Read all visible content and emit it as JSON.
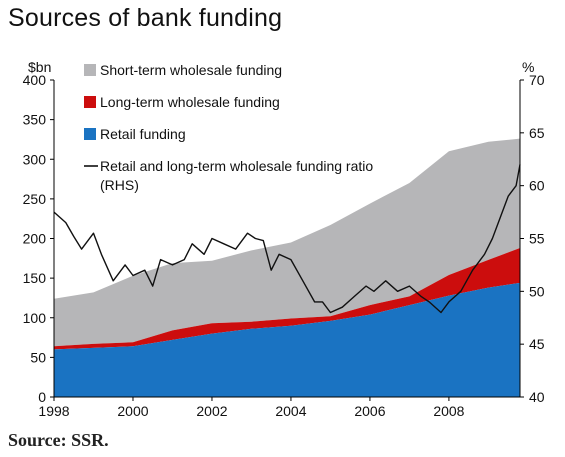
{
  "title": "Sources of bank funding",
  "source": "Source: SSR.",
  "chart_data": {
    "type": "area",
    "x_range": [
      1998,
      2009.8
    ],
    "x_ticks": [
      "1998",
      "2000",
      "2002",
      "2004",
      "2006",
      "2008"
    ],
    "left_axis": {
      "unit": "$bn",
      "range": [
        0,
        400
      ],
      "ticks": [
        "0",
        "50",
        "100",
        "150",
        "200",
        "250",
        "300",
        "350",
        "400"
      ]
    },
    "right_axis": {
      "unit": "%",
      "range": [
        40,
        70
      ],
      "ticks": [
        "40",
        "45",
        "50",
        "55",
        "60",
        "65",
        "70"
      ]
    },
    "legend_position": "top-left",
    "colors": {
      "short_term": "#b6b6b8",
      "long_term": "#cc0d0d",
      "retail": "#1a73c2",
      "ratio": "#111111"
    },
    "stacked_series": [
      {
        "name": "Retail funding",
        "color_key": "retail",
        "x": [
          1998,
          1999,
          2000,
          2001,
          2002,
          2003,
          2004,
          2005,
          2006,
          2007,
          2008,
          2009,
          2009.8
        ],
        "values": [
          60,
          62,
          64,
          72,
          80,
          86,
          90,
          96,
          104,
          116,
          128,
          138,
          144
        ]
      },
      {
        "name": "Long-term wholesale funding",
        "color_key": "long_term",
        "x": [
          1998,
          1999,
          2000,
          2001,
          2002,
          2003,
          2004,
          2005,
          2006,
          2007,
          2008,
          2009,
          2009.8
        ],
        "values": [
          4,
          5,
          5,
          12,
          13,
          9,
          9,
          6,
          12,
          11,
          26,
          35,
          44
        ]
      },
      {
        "name": "Short-term wholesale funding",
        "color_key": "short_term",
        "x": [
          1998,
          1999,
          2000,
          2001,
          2002,
          2003,
          2004,
          2005,
          2006,
          2007,
          2008,
          2009,
          2009.8
        ],
        "values": [
          60,
          65,
          84,
          85,
          79,
          90,
          96,
          115,
          128,
          143,
          156,
          149,
          138
        ]
      }
    ],
    "line_series": {
      "name": "Retail and long-term wholesale funding ratio (RHS)",
      "color_key": "ratio",
      "axis": "right",
      "x": [
        1998,
        1998.3,
        1998.5,
        1998.7,
        1999,
        1999.2,
        1999.5,
        1999.8,
        2000,
        2000.3,
        2000.5,
        2000.7,
        2001,
        2001.3,
        2001.5,
        2001.8,
        2002,
        2002.3,
        2002.6,
        2002.9,
        2003.1,
        2003.3,
        2003.5,
        2003.7,
        2004,
        2004.3,
        2004.6,
        2004.8,
        2005,
        2005.3,
        2005.6,
        2005.9,
        2006.1,
        2006.4,
        2006.7,
        2007,
        2007.3,
        2007.5,
        2007.8,
        2008,
        2008.3,
        2008.6,
        2008.9,
        2009.1,
        2009.3,
        2009.5,
        2009.7,
        2009.8
      ],
      "values": [
        57.5,
        56.5,
        55.2,
        54.0,
        55.5,
        53.5,
        51.0,
        52.5,
        51.5,
        52.0,
        50.5,
        53.0,
        52.5,
        53.0,
        54.5,
        53.5,
        55.0,
        54.5,
        54.0,
        55.5,
        55.0,
        54.8,
        52.0,
        53.5,
        53.0,
        51.0,
        49.0,
        49.0,
        48.0,
        48.5,
        49.5,
        50.5,
        50.0,
        51.0,
        50.0,
        50.5,
        49.5,
        49.0,
        48.0,
        49.0,
        50.0,
        52.0,
        53.5,
        55.0,
        57.0,
        59.0,
        60.0,
        62.0
      ]
    }
  }
}
